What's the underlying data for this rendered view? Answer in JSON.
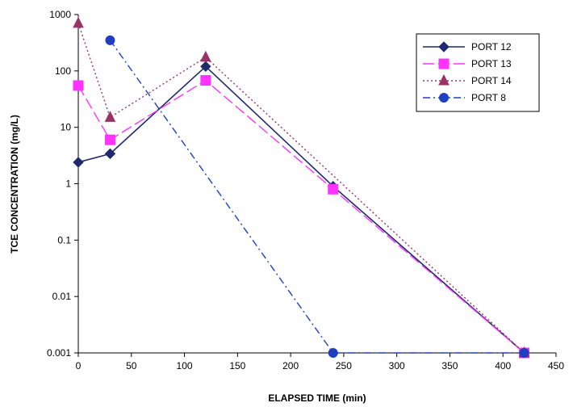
{
  "chart_data": {
    "type": "line",
    "title": "",
    "xlabel": "ELAPSED TIME (min)",
    "ylabel": "TCE CONCENTRATION (mg/L)",
    "xlim": [
      0,
      450
    ],
    "ylim": [
      0.001,
      1000
    ],
    "yscale": "log",
    "grid": false,
    "legend_position": "top-right",
    "x_ticks": [
      "0",
      "50",
      "100",
      "150",
      "200",
      "250",
      "300",
      "350",
      "400",
      "450"
    ],
    "y_ticks": [
      "0.001",
      "0.01",
      "0.1",
      "1",
      "10",
      "100",
      "1000"
    ],
    "x_tick_values": [
      0,
      50,
      100,
      150,
      200,
      250,
      300,
      350,
      400,
      450
    ],
    "y_tick_values": [
      0.001,
      0.01,
      0.1,
      1,
      10,
      100,
      1000
    ],
    "series": [
      {
        "name": "PORT 12",
        "color": "#1f2a6e",
        "marker": "diamond",
        "line_style": "solid",
        "x": [
          0,
          30,
          120,
          240,
          420
        ],
        "y": [
          2.4,
          3.4,
          120,
          0.9,
          0.001
        ]
      },
      {
        "name": "PORT 13",
        "color": "#ff33ff",
        "marker": "square",
        "line_style": "long-dash",
        "x": [
          0,
          30,
          120,
          240,
          420
        ],
        "y": [
          55,
          6,
          68,
          0.8,
          0.001
        ]
      },
      {
        "name": "PORT 14",
        "color": "#993366",
        "marker": "triangle",
        "line_style": "dotted",
        "x": [
          0,
          30,
          120,
          420
        ],
        "y": [
          700,
          15,
          175,
          0.001
        ]
      },
      {
        "name": "PORT 8",
        "color": "#1f3fbf",
        "marker": "circle",
        "line_style": "dash-dot",
        "x": [
          30,
          240,
          420
        ],
        "y": [
          350,
          0.001,
          0.001
        ]
      }
    ]
  }
}
